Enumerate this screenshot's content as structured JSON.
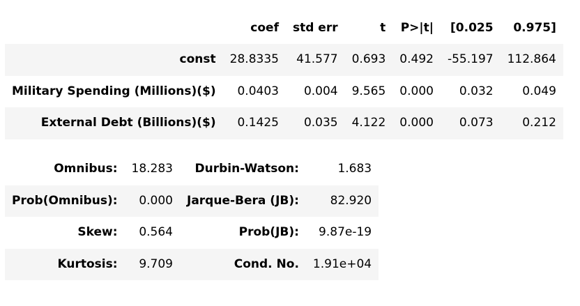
{
  "coef_table": {
    "headers": [
      "",
      "coef",
      "std err",
      "t",
      "P>|t|",
      "[0.025",
      "0.975]"
    ],
    "rows": [
      {
        "name": "const",
        "coef": "28.8335",
        "std_err": "41.577",
        "t": "0.693",
        "p": "0.492",
        "lo": "-55.197",
        "hi": "112.864"
      },
      {
        "name": "Military Spending (Millions)($)",
        "coef": "0.0403",
        "std_err": "0.004",
        "t": "9.565",
        "p": "0.000",
        "lo": "0.032",
        "hi": "0.049"
      },
      {
        "name": "External Debt (Billions)($)",
        "coef": "0.1425",
        "std_err": "0.035",
        "t": "4.122",
        "p": "0.000",
        "lo": "0.073",
        "hi": "0.212"
      }
    ]
  },
  "diag_table": {
    "rows": [
      {
        "l_label": "Omnibus:",
        "l_value": "18.283",
        "r_label": "Durbin-Watson:",
        "r_value": "1.683"
      },
      {
        "l_label": "Prob(Omnibus):",
        "l_value": "0.000",
        "r_label": "Jarque-Bera (JB):",
        "r_value": "82.920"
      },
      {
        "l_label": "Skew:",
        "l_value": "0.564",
        "r_label": "Prob(JB):",
        "r_value": "9.87e-19"
      },
      {
        "l_label": "Kurtosis:",
        "l_value": "9.709",
        "r_label": "Cond. No.",
        "r_value": "1.91e+04"
      }
    ]
  },
  "colors": {
    "stripe": "#f5f5f5",
    "background": "#ffffff",
    "text": "#000000"
  }
}
